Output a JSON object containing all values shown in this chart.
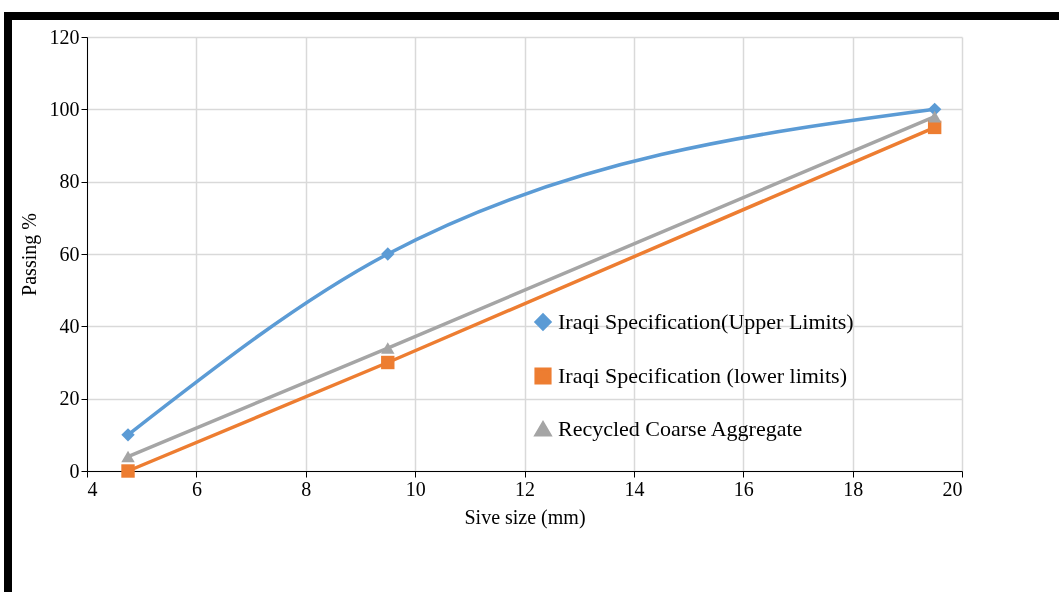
{
  "chart_data": {
    "type": "line",
    "xlabel": "Sive size (mm)",
    "ylabel": "Passing %",
    "x": [
      4.75,
      9.5,
      19.5
    ],
    "series": [
      {
        "name": "Iraqi Specification(Upper Limits)",
        "color": "#5b9bd5",
        "marker": "diamond",
        "values": [
          10,
          60,
          100
        ]
      },
      {
        "name": "Iraqi Specification (lower limits)",
        "color": "#ed7d31",
        "marker": "square",
        "values": [
          0,
          30,
          95
        ]
      },
      {
        "name": "Recycled Coarse Aggregate",
        "color": "#a5a5a5",
        "marker": "triangle",
        "values": [
          4,
          34,
          98
        ]
      }
    ],
    "xlim": [
      4,
      20
    ],
    "xticks": [
      4,
      6,
      8,
      10,
      12,
      14,
      16,
      18,
      20
    ],
    "ylim": [
      0,
      120
    ],
    "yticks": [
      0,
      20,
      40,
      60,
      80,
      100,
      120
    ],
    "grid": true,
    "legend": "right"
  }
}
